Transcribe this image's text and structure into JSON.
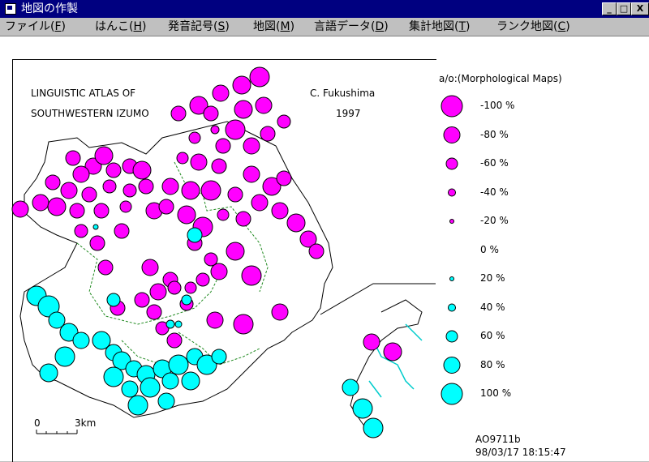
{
  "window": {
    "title": "地図の作製",
    "btn_min": "_",
    "btn_max": "□",
    "btn_close": "X"
  },
  "menu": {
    "items": [
      {
        "label": "ファイル(",
        "key": "F",
        "end": ")"
      },
      {
        "label": "はんこ(",
        "key": "H",
        "end": ")"
      },
      {
        "label": "発音記号(",
        "key": "S",
        "end": ")"
      },
      {
        "label": "地図(",
        "key": "M",
        "end": ")"
      },
      {
        "label": "言語データ(",
        "key": "D",
        "end": ")"
      },
      {
        "label": "集計地図(",
        "key": "T",
        "end": ")"
      },
      {
        "label": "ランク地図(",
        "key": "C",
        "end": ")"
      }
    ]
  },
  "map": {
    "title_line1": "LINGUISTIC ATLAS OF",
    "title_line2": "SOUTHWESTERN IZUMO",
    "author": "C. Fukushima",
    "year": "1997",
    "scale_zero": "0",
    "scale_label": "3km"
  },
  "legend": {
    "title": "a/o:(Morphological Maps)",
    "items": [
      {
        "label": "-100 %",
        "color": "#ff00ff",
        "r": 13
      },
      {
        "label": "-80 %",
        "color": "#ff00ff",
        "r": 10
      },
      {
        "label": "-60 %",
        "color": "#ff00ff",
        "r": 7
      },
      {
        "label": "-40 %",
        "color": "#ff00ff",
        "r": 4.5
      },
      {
        "label": "-20 %",
        "color": "#ff00ff",
        "r": 2.5
      },
      {
        "label": "0 %",
        "color": "#ffffff",
        "r": 0
      },
      {
        "label": "20 %",
        "color": "#00ffff",
        "r": 2.5
      },
      {
        "label": "40 %",
        "color": "#00ffff",
        "r": 4.5
      },
      {
        "label": "60 %",
        "color": "#00ffff",
        "r": 7
      },
      {
        "label": "80 %",
        "color": "#00ffff",
        "r": 10
      },
      {
        "label": "100 %",
        "color": "#00ffff",
        "r": 13
      }
    ],
    "code": "AO9711b",
    "timestamp": "98/03/17 18:15:47"
  },
  "colors": {
    "negative": "#ff00ff",
    "positive": "#00ffff",
    "boundary": "#228b22",
    "title_bg": "#000080"
  }
}
